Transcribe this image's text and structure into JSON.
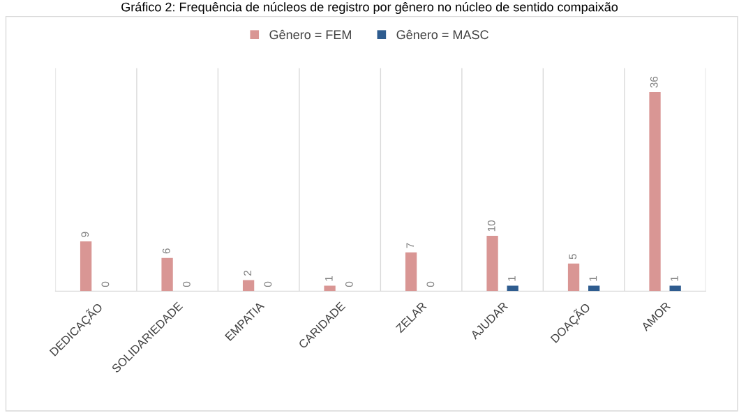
{
  "chart_data": {
    "type": "bar",
    "title": "Gráfico 2: Frequência de núcleos de registro por gênero no núcleo de sentido compaixão",
    "categories": [
      "DEDICAÇÃO",
      "SOLIDARIEDADE",
      "EMPATIA",
      "CARIDADE",
      "ZELAR",
      "AJUDAR",
      "DOAÇÃO",
      "AMOR"
    ],
    "series": [
      {
        "name": "Gênero = FEM",
        "color": "#d99694",
        "values": [
          9,
          6,
          2,
          1,
          7,
          10,
          5,
          36
        ]
      },
      {
        "name": "Gênero = MASC",
        "color": "#2e5c8f",
        "values": [
          0,
          0,
          0,
          0,
          0,
          1,
          1,
          1
        ]
      }
    ],
    "data_labels": true,
    "grid": "x",
    "legend": "top"
  }
}
